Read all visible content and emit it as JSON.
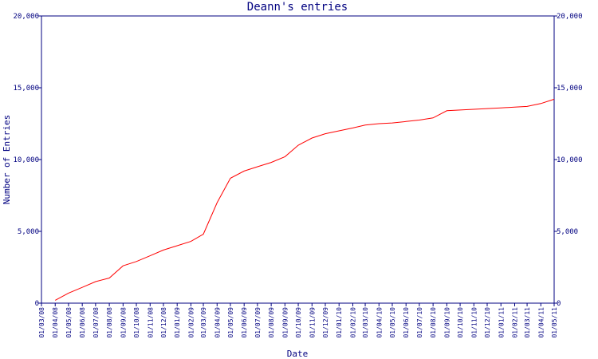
{
  "chart_data": {
    "type": "line",
    "title": "Deann's entries",
    "xlabel": "Date",
    "ylabel": "Number of Entries",
    "ylim": [
      0,
      20000
    ],
    "yticks": [
      0,
      5000,
      10000,
      15000,
      20000
    ],
    "ytick_labels": [
      "0",
      "5,000",
      "10,000",
      "15,000",
      "20,000"
    ],
    "xticks": [
      "01/03/08",
      "01/04/08",
      "01/05/08",
      "01/06/08",
      "01/07/08",
      "01/08/08",
      "01/09/08",
      "01/10/08",
      "01/11/08",
      "01/12/08",
      "01/01/09",
      "01/02/09",
      "01/03/09",
      "01/04/09",
      "01/05/09",
      "01/06/09",
      "01/07/09",
      "01/08/09",
      "01/09/09",
      "01/10/09",
      "01/11/09",
      "01/12/09",
      "01/01/10",
      "01/02/10",
      "01/03/10",
      "01/04/10",
      "01/05/10",
      "01/06/10",
      "01/07/10",
      "01/08/10",
      "01/09/10",
      "01/10/10",
      "01/11/10",
      "01/12/10",
      "01/01/11",
      "01/02/11",
      "01/03/11",
      "01/04/11",
      "01/05/11"
    ],
    "grid": false,
    "line_color": "#ff0000",
    "axis_color": "#000080",
    "series": [
      {
        "x": [
          "2008-04-01",
          "2008-05-01",
          "2008-06-01",
          "2008-07-01",
          "2008-08-01",
          "2008-09-01",
          "2008-10-01",
          "2008-11-01",
          "2008-12-01",
          "2009-01-01",
          "2009-02-01",
          "2009-03-01",
          "2009-04-01",
          "2009-05-01",
          "2009-06-01",
          "2009-07-01",
          "2009-08-01",
          "2009-09-01",
          "2009-10-01",
          "2009-11-01",
          "2009-12-01",
          "2010-01-01",
          "2010-02-01",
          "2010-03-01",
          "2010-04-01",
          "2010-05-01",
          "2010-06-01",
          "2010-07-01",
          "2010-08-01",
          "2010-09-01",
          "2010-10-01",
          "2010-11-01",
          "2010-12-01",
          "2011-01-01",
          "2011-02-01",
          "2011-03-01",
          "2011-04-01",
          "2011-05-01"
        ],
        "values": [
          200,
          700,
          1100,
          1500,
          1750,
          2600,
          2900,
          3300,
          3700,
          4000,
          4300,
          4800,
          7000,
          8700,
          9200,
          9500,
          9800,
          10200,
          11000,
          11500,
          11800,
          12000,
          12200,
          12400,
          12500,
          12550,
          12650,
          12750,
          12900,
          13400,
          13450,
          13500,
          13550,
          13600,
          13650,
          13700,
          13900,
          14200
        ]
      }
    ]
  }
}
